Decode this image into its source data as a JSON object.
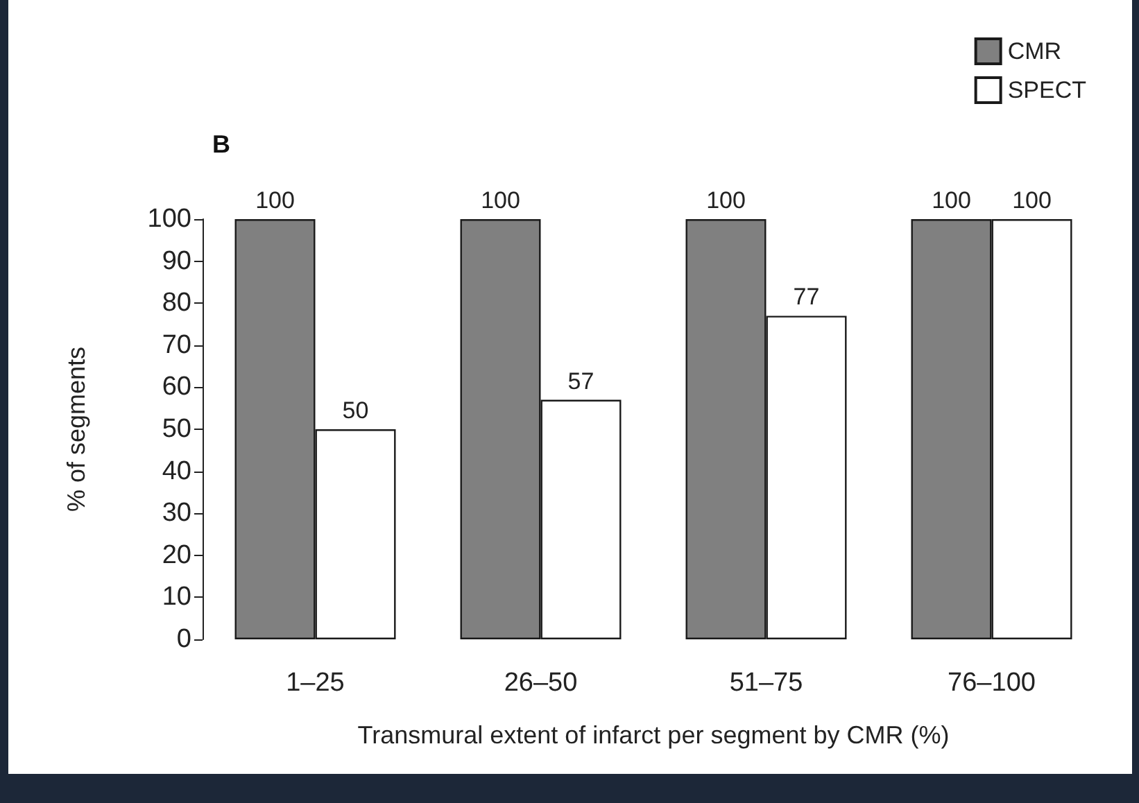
{
  "chart_data": {
    "type": "bar",
    "title": "B",
    "xlabel": "Transmural extent of infarct per segment by CMR (%)",
    "ylabel": "% of segments",
    "categories": [
      "1–25",
      "26–50",
      "51–75",
      "76–100"
    ],
    "series": [
      {
        "name": "CMR",
        "color": "#808080",
        "values": [
          100,
          100,
          100,
          100
        ]
      },
      {
        "name": "SPECT",
        "color": "#ffffff",
        "values": [
          50,
          57,
          77,
          100
        ]
      }
    ],
    "ylim": [
      0,
      100
    ],
    "yticks": [
      0,
      10,
      20,
      30,
      40,
      50,
      60,
      70,
      80,
      90,
      100
    ],
    "grid": false,
    "legend": "top right",
    "data_labels": true
  }
}
